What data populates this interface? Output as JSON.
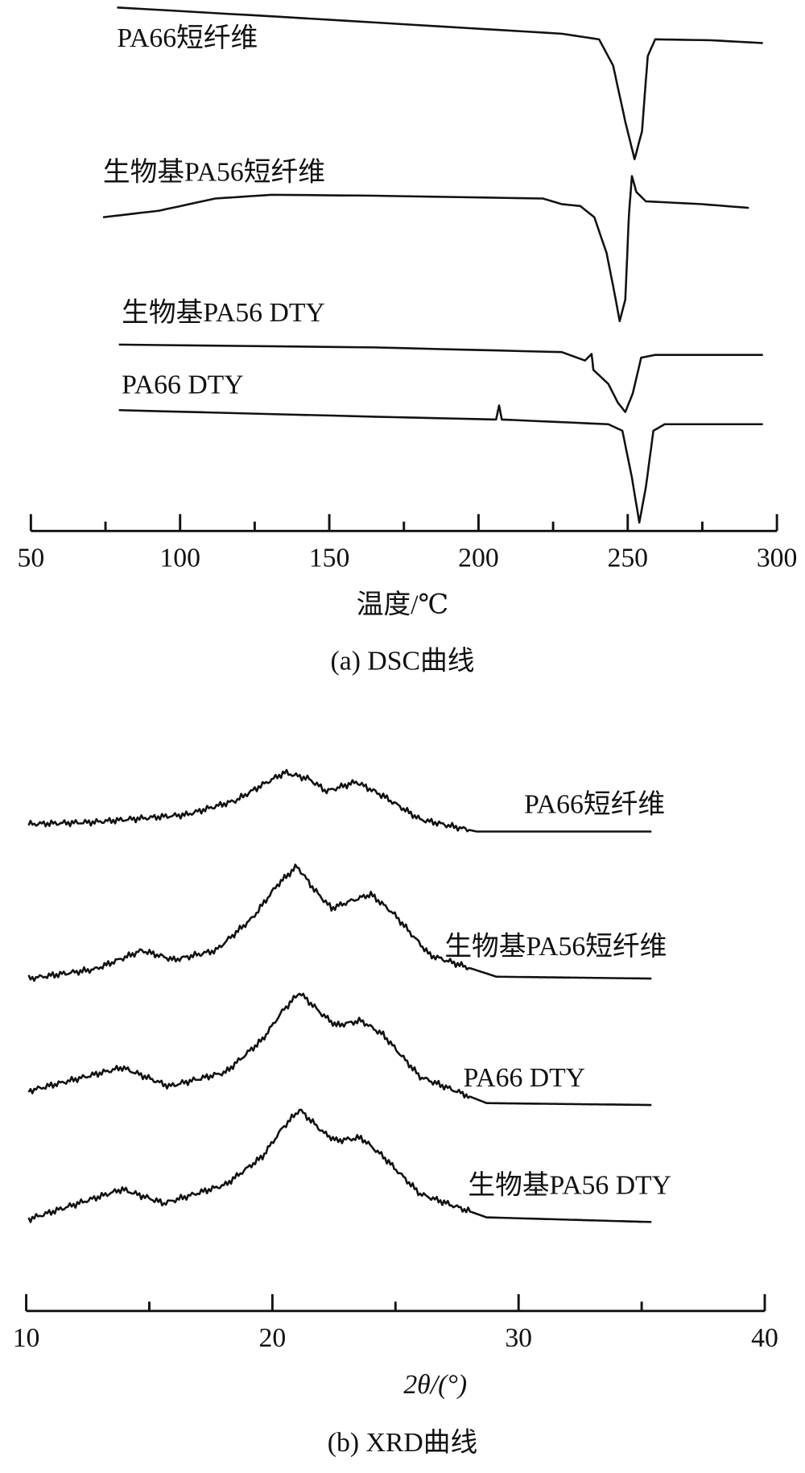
{
  "chart_data": [
    {
      "type": "line",
      "caption": "(a) DSC曲线",
      "xlabel": "温度/℃",
      "ylabel": "",
      "xlim": [
        50,
        300
      ],
      "xticks": [
        "50",
        "100",
        "150",
        "200",
        "250",
        "300"
      ],
      "y_axis_shown": false,
      "grid": false,
      "legend": "inline labels above curves",
      "series": [
        {
          "name": "PA66短纤维",
          "x": [
            78.9,
            133.8,
            196.5,
            227.9,
            240.4,
            245.1,
            249.2,
            252.3,
            254.8,
            256.7,
            259.2,
            278.0,
            295.3
          ],
          "y": [
            5.59,
            5.49,
            5.37,
            5.31,
            5.25,
            4.97,
            4.37,
            3.97,
            4.27,
            5.07,
            5.25,
            5.24,
            5.21
          ]
        },
        {
          "name": "生物基PA56短纤维",
          "x": [
            74.2,
            93.0,
            111.8,
            130.6,
            165.1,
            221.6,
            227.9,
            234.1,
            238.8,
            242.9,
            246.0,
            247.3,
            249.2,
            250.4,
            251.4,
            252.9,
            256.1,
            274.9,
            290.6
          ],
          "y": [
            3.35,
            3.42,
            3.55,
            3.59,
            3.58,
            3.55,
            3.49,
            3.47,
            3.35,
            2.97,
            2.47,
            2.24,
            2.47,
            3.37,
            3.79,
            3.62,
            3.52,
            3.49,
            3.45
          ]
        },
        {
          "name": "生物基PA56 DTY",
          "x": [
            79.5,
            165.1,
            227.9,
            235.7,
            237.9,
            238.5,
            243.5,
            246.7,
            249.2,
            251.7,
            254.5,
            259.2,
            295.3
          ],
          "y": [
            1.99,
            1.96,
            1.91,
            1.82,
            1.89,
            1.72,
            1.57,
            1.37,
            1.27,
            1.47,
            1.85,
            1.88,
            1.88
          ]
        },
        {
          "name": "PA66 DTY",
          "x": [
            79.5,
            165.1,
            205.9,
            206.9,
            207.8,
            243.5,
            248.2,
            251.4,
            253.9,
            256.1,
            258.6,
            262.4,
            295.3
          ],
          "y": [
            1.29,
            1.22,
            1.19,
            1.34,
            1.19,
            1.14,
            1.07,
            0.57,
            0.09,
            0.47,
            1.07,
            1.14,
            1.14
          ]
        }
      ]
    },
    {
      "type": "line",
      "caption": "(b) XRD曲线",
      "xlabel": "2θ/(°)",
      "ylabel": "",
      "xlim": [
        10,
        40
      ],
      "xticks": [
        "10",
        "20",
        "30",
        "40"
      ],
      "y_axis_shown": false,
      "grid": false,
      "legend": "inline labels right of curves",
      "series": [
        {
          "name": "PA66短纤维",
          "x": [
            10.1,
            12.7,
            16.5,
            18.5,
            19.6,
            20.5,
            21.5,
            22.2,
            23.4,
            24.5,
            26.0,
            28.3,
            35.4
          ],
          "y": [
            5.2,
            5.22,
            5.3,
            5.45,
            5.62,
            5.75,
            5.68,
            5.55,
            5.65,
            5.5,
            5.25,
            5.12,
            5.12
          ]
        },
        {
          "name": "生物基PA56短纤维",
          "x": [
            10.1,
            12.8,
            14.7,
            16.0,
            17.7,
            19.2,
            20.2,
            21.0,
            21.7,
            22.4,
            23.2,
            24.0,
            24.9,
            26.4,
            29.1,
            35.4
          ],
          "y": [
            3.55,
            3.65,
            3.85,
            3.75,
            3.85,
            4.2,
            4.55,
            4.75,
            4.5,
            4.3,
            4.38,
            4.45,
            4.25,
            3.8,
            3.57,
            3.55
          ]
        },
        {
          "name": "PA66 DTY",
          "x": [
            10.1,
            13.9,
            15.8,
            18.1,
            19.6,
            20.4,
            21.1,
            22.1,
            22.6,
            23.6,
            24.5,
            26.0,
            28.7,
            35.4
          ],
          "y": [
            2.35,
            2.6,
            2.4,
            2.55,
            2.9,
            3.2,
            3.4,
            3.15,
            3.05,
            3.1,
            2.95,
            2.5,
            2.22,
            2.2
          ]
        },
        {
          "name": "生物基PA56 DTY",
          "x": [
            10.1,
            13.9,
            15.6,
            18.1,
            19.6,
            20.4,
            21.1,
            22.1,
            22.6,
            23.6,
            24.5,
            26.0,
            28.7,
            35.4
          ],
          "y": [
            0.98,
            1.3,
            1.15,
            1.35,
            1.65,
            1.95,
            2.15,
            1.9,
            1.82,
            1.85,
            1.65,
            1.25,
            1.0,
            0.95
          ]
        }
      ]
    }
  ]
}
